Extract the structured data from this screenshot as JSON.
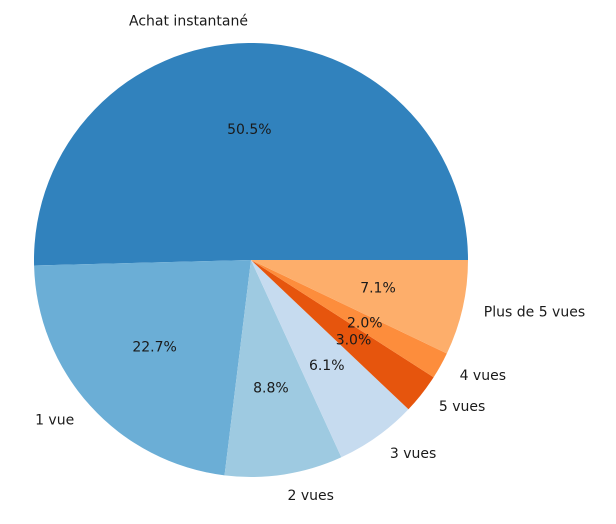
{
  "chart_data": {
    "type": "pie",
    "title": "",
    "start_angle_deg": 0,
    "direction": "counterclockwise",
    "slices": [
      {
        "label": "Achat instantané",
        "value": 50.5,
        "pct_label": "50.5%",
        "color": "#3182bd"
      },
      {
        "label": "1 vue",
        "value": 22.7,
        "pct_label": "22.7%",
        "color": "#6baed6"
      },
      {
        "label": "2 vues",
        "value": 8.8,
        "pct_label": "8.8%",
        "color": "#9ecae1"
      },
      {
        "label": "3 vues",
        "value": 6.1,
        "pct_label": "6.1%",
        "color": "#c6dbef"
      },
      {
        "label": "5 vues",
        "value": 3.0,
        "pct_label": "3.0%",
        "color": "#e6550d"
      },
      {
        "label": "4 vues",
        "value": 2.0,
        "pct_label": "2.0%",
        "color": "#fd8d3c"
      },
      {
        "label": "Plus de 5 vues",
        "value": 7.1,
        "pct_label": "7.1%",
        "color": "#fdae6b"
      }
    ]
  }
}
